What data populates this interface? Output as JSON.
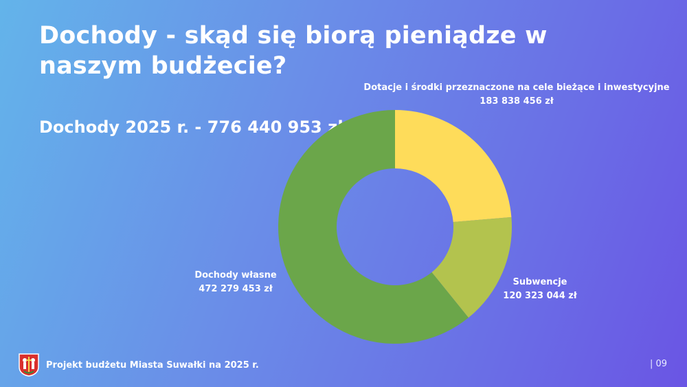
{
  "slide": {
    "title": "Dochody - skąd się biorą pieniądze w naszym budżecie?",
    "total": "Dochody 2025 r. - 776 440 953 zł",
    "footer": "Projekt budżetu Miasta Suwałki na 2025 r.",
    "page_number": "| 09"
  },
  "chart_data": {
    "type": "pie",
    "variant": "donut",
    "start": "top, clockwise",
    "slices": [
      {
        "name": "Dotacje i środki przeznaczone na cele bieżące i inwestycyjne",
        "value": 183838456,
        "value_label": "183 838 456 zł",
        "color": "#fedc5a"
      },
      {
        "name": "Subwencje",
        "value": 120323044,
        "value_label": "120 323 044 zł",
        "color": "#b3c34e"
      },
      {
        "name": "Dochody własne",
        "value": 472279453,
        "value_label": "472 279 453 zł",
        "color": "#6ba64a"
      }
    ]
  },
  "icons": {
    "coat_of_arms": "coat-of-arms-icon"
  }
}
